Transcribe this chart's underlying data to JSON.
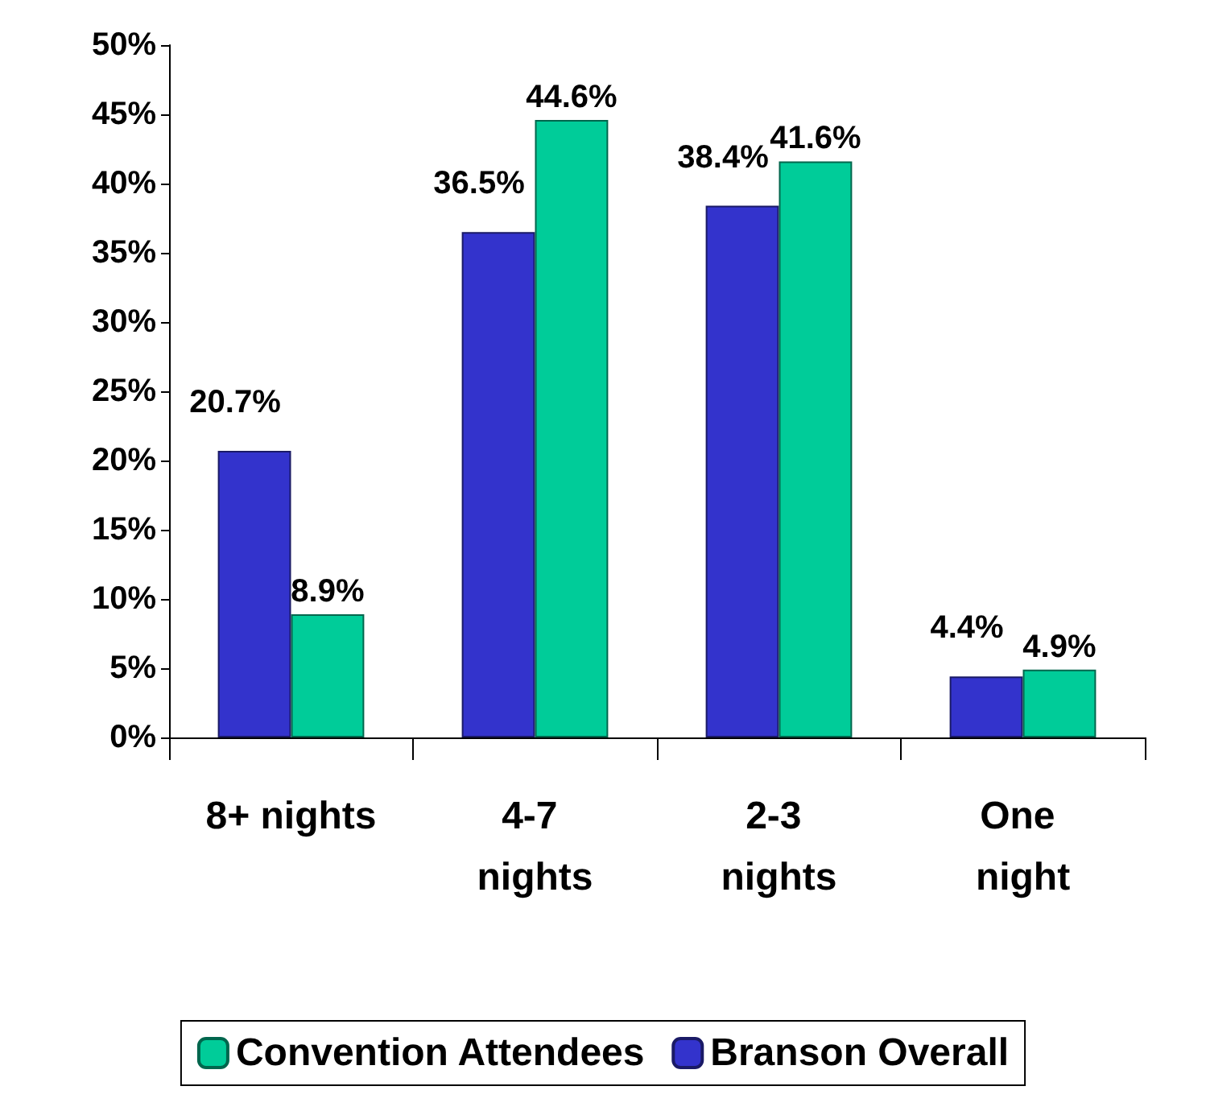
{
  "chart_data": {
    "type": "bar",
    "categories": [
      "8+ nights",
      "4-7 nights",
      "2-3 nights",
      "One night"
    ],
    "series": [
      {
        "name": "Branson Overall",
        "color": "#3333cc",
        "values": [
          20.7,
          36.5,
          38.4,
          4.4
        ],
        "value_labels": [
          "20.7%",
          "36.5%",
          "38.4%",
          "4.4%"
        ]
      },
      {
        "name": "Convention Attendees",
        "color": "#00cc99",
        "values": [
          8.9,
          44.6,
          41.6,
          4.9
        ],
        "value_labels": [
          "8.9%",
          "44.6%",
          "41.6%",
          "4.9%"
        ]
      }
    ],
    "ylim": [
      0,
      50
    ],
    "yticks": [
      {
        "value": 0,
        "label": "0%"
      },
      {
        "value": 5,
        "label": "5%"
      },
      {
        "value": 10,
        "label": "10%"
      },
      {
        "value": 15,
        "label": "15%"
      },
      {
        "value": 20,
        "label": "20%"
      },
      {
        "value": 25,
        "label": "25%"
      },
      {
        "value": 30,
        "label": "30%"
      },
      {
        "value": 35,
        "label": "35%"
      },
      {
        "value": 40,
        "label": "40%"
      },
      {
        "value": 45,
        "label": "45%"
      },
      {
        "value": 50,
        "label": "50%"
      }
    ],
    "grid": false,
    "legend": "bottom"
  }
}
